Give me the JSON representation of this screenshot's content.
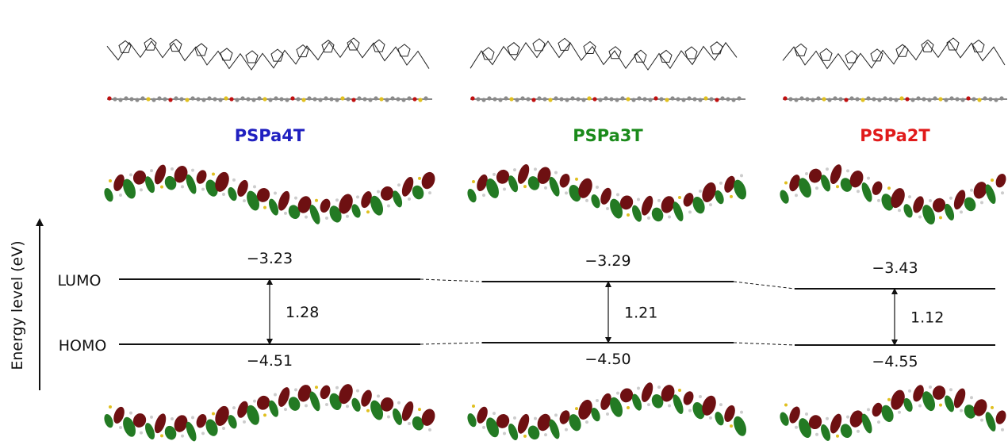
{
  "axis_label": "Energy level (eV)",
  "level_labels": {
    "lumo": "LUMO",
    "homo": "HOMO"
  },
  "polymers": [
    {
      "name": "PSPa4T",
      "color": "#2020c0",
      "lumo": "−3.23",
      "homo": "−4.51",
      "gap": "1.28"
    },
    {
      "name": "PSPa3T",
      "color": "#1a8a1a",
      "lumo": "−3.29",
      "homo": "−4.50",
      "gap": "1.21"
    },
    {
      "name": "PSPa2T",
      "color": "#e01a1a",
      "lumo": "−3.43",
      "homo": "−4.55",
      "gap": "1.12"
    }
  ]
}
